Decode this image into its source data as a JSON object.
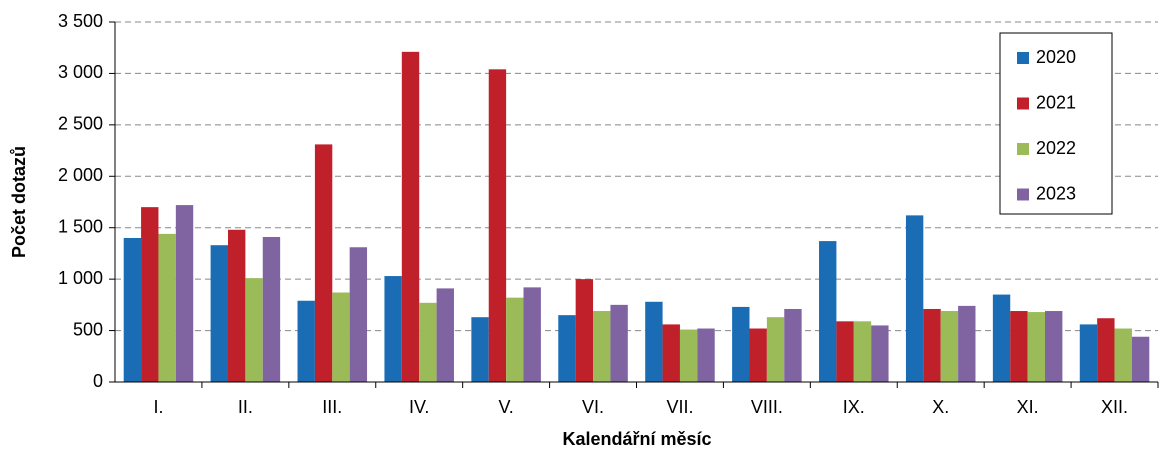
{
  "chart_data": {
    "type": "bar",
    "x_label": "Kalendářní měsíc",
    "y_label": "Počet dotazů",
    "categories": [
      "I.",
      "II.",
      "III.",
      "IV.",
      "V.",
      "VI.",
      "VII.",
      "VIII.",
      "IX.",
      "X.",
      "XI.",
      "XII."
    ],
    "series": [
      {
        "name": "2020",
        "color": "#1a6db5",
        "values": [
          1400,
          1330,
          790,
          1030,
          630,
          650,
          780,
          730,
          1370,
          1620,
          850,
          560
        ]
      },
      {
        "name": "2021",
        "color": "#c0202a",
        "values": [
          1700,
          1480,
          2310,
          3210,
          3040,
          1000,
          560,
          520,
          590,
          710,
          690,
          620
        ]
      },
      {
        "name": "2022",
        "color": "#9bbb59",
        "values": [
          1440,
          1010,
          870,
          770,
          820,
          690,
          510,
          630,
          590,
          690,
          680,
          520
        ]
      },
      {
        "name": "2023",
        "color": "#8064a2",
        "values": [
          1720,
          1410,
          1310,
          910,
          920,
          750,
          520,
          710,
          550,
          740,
          690,
          440
        ]
      }
    ],
    "ylim": [
      0,
      3500
    ],
    "yticks": [
      0,
      {
        "value": 500,
        "label": "500"
      },
      {
        "value": 1000,
        "label": "1 000"
      },
      {
        "value": 1500,
        "label": "1 500"
      },
      {
        "value": 2000,
        "label": "2 000"
      },
      {
        "value": 2500,
        "label": "2 500"
      },
      {
        "value": 3000,
        "label": "3 000"
      },
      {
        "value": 3500,
        "label": "3 500"
      }
    ],
    "grid": true,
    "legend": "upper right"
  }
}
